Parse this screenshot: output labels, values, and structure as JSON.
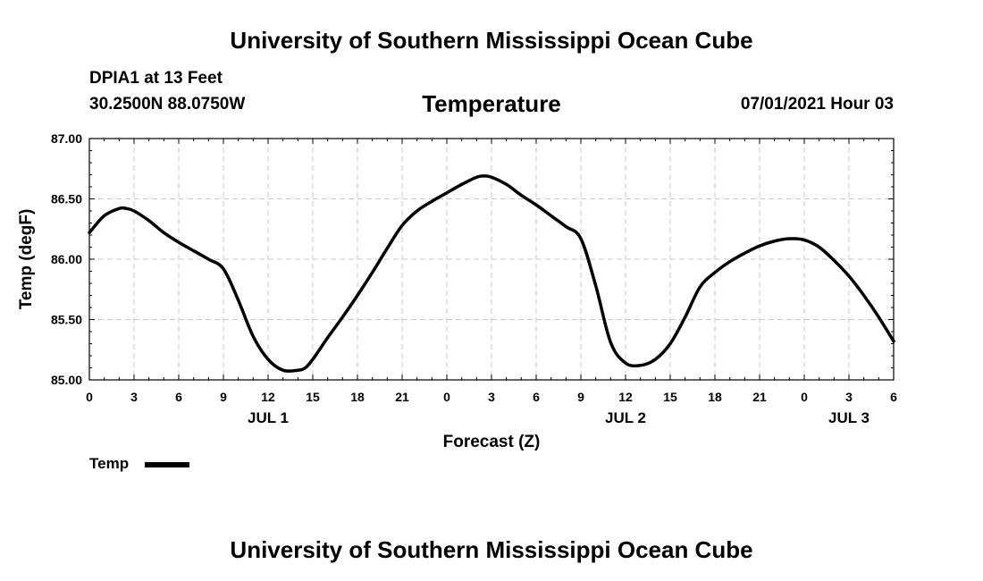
{
  "header": {
    "title": "University of Southern Mississippi Ocean Cube",
    "station": "DPIA1 at 13 Feet",
    "coords": "30.2500N  88.0750W",
    "chart_title": "Temperature",
    "run_time": "07/01/2021 Hour 03"
  },
  "footer": {
    "title": "University of Southern Mississippi Ocean Cube"
  },
  "legend": {
    "label": "Temp"
  },
  "chart_data": {
    "type": "line",
    "title": "Temperature",
    "xlabel": "Forecast (Z)",
    "ylabel": "Temp (degF)",
    "ylim": [
      85.0,
      87.0
    ],
    "xlim_hours": [
      0,
      54
    ],
    "y_ticks": [
      "85.00",
      "85.50",
      "86.00",
      "86.50",
      "87.00"
    ],
    "y_tick_values": [
      85.0,
      85.5,
      86.0,
      86.5,
      87.0
    ],
    "x_tick_labels": [
      "0",
      "3",
      "6",
      "9",
      "12",
      "15",
      "18",
      "21",
      "0",
      "3",
      "6",
      "9",
      "12",
      "15",
      "18",
      "21",
      "0",
      "3",
      "6"
    ],
    "day_labels": [
      {
        "text": "JUL 1",
        "hour": 12
      },
      {
        "text": "JUL 2",
        "hour": 36
      },
      {
        "text": "JUL 3",
        "hour": 51
      }
    ],
    "grid": true,
    "series": [
      {
        "name": "Temp",
        "color": "#000000",
        "x": [
          0,
          1,
          2,
          2.5,
          3,
          4,
          5,
          6,
          7,
          8,
          9,
          10,
          11,
          12,
          13,
          14,
          14.5,
          15,
          16,
          17,
          18,
          19,
          20,
          21,
          22,
          23,
          24,
          25,
          26,
          26.5,
          27,
          28,
          29,
          30,
          31,
          32,
          33,
          34,
          35,
          36,
          37,
          38,
          39,
          40,
          41,
          42,
          43,
          44,
          45,
          46,
          47,
          48,
          49,
          50,
          51,
          52,
          53,
          54
        ],
        "values": [
          86.22,
          86.36,
          86.42,
          86.42,
          86.4,
          86.32,
          86.22,
          86.14,
          86.07,
          86.0,
          85.92,
          85.66,
          85.36,
          85.17,
          85.08,
          85.08,
          85.1,
          85.17,
          85.35,
          85.52,
          85.7,
          85.89,
          86.09,
          86.28,
          86.4,
          86.48,
          86.55,
          86.62,
          86.68,
          86.69,
          86.68,
          86.62,
          86.53,
          86.45,
          86.36,
          86.27,
          86.17,
          85.78,
          85.31,
          85.14,
          85.12,
          85.17,
          85.3,
          85.52,
          85.77,
          85.89,
          85.98,
          86.05,
          86.11,
          86.15,
          86.17,
          86.16,
          86.1,
          85.99,
          85.86,
          85.7,
          85.52,
          85.32
        ]
      }
    ]
  }
}
